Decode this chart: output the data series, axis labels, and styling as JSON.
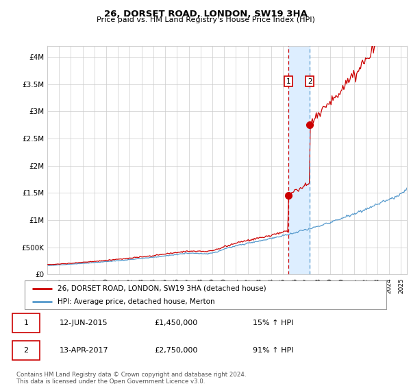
{
  "title": "26, DORSET ROAD, LONDON, SW19 3HA",
  "subtitle": "Price paid vs. HM Land Registry's House Price Index (HPI)",
  "ylabel_ticks": [
    "£0",
    "£500K",
    "£1M",
    "£1.5M",
    "£2M",
    "£2.5M",
    "£3M",
    "£3.5M",
    "£4M"
  ],
  "ytick_vals": [
    0,
    500000,
    1000000,
    1500000,
    2000000,
    2500000,
    3000000,
    3500000,
    4000000
  ],
  "ylim": [
    0,
    4200000
  ],
  "xlim_start": 1995.0,
  "xlim_end": 2025.5,
  "red_line_color": "#cc0000",
  "blue_line_color": "#5599cc",
  "shade_color": "#ddeeff",
  "marker1_x": 2015.44,
  "marker2_x": 2017.27,
  "marker1_y": 1450000,
  "marker2_y": 2750000,
  "legend_label1": "26, DORSET ROAD, LONDON, SW19 3HA (detached house)",
  "legend_label2": "HPI: Average price, detached house, Merton",
  "table_row1": [
    "1",
    "12-JUN-2015",
    "£1,450,000",
    "15% ↑ HPI"
  ],
  "table_row2": [
    "2",
    "13-APR-2017",
    "£2,750,000",
    "91% ↑ HPI"
  ],
  "footer": "Contains HM Land Registry data © Crown copyright and database right 2024.\nThis data is licensed under the Open Government Licence v3.0.",
  "grid_color": "#cccccc",
  "background_color": "#ffffff"
}
